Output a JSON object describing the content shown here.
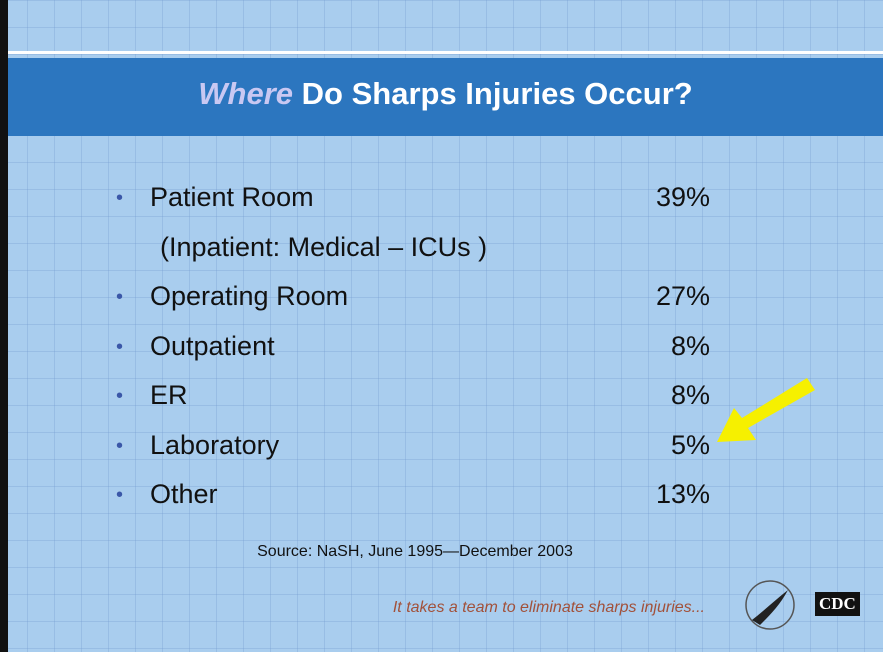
{
  "title": {
    "emphasis": "Where",
    "rest": "Do Sharps Injuries Occur?"
  },
  "items": [
    {
      "label": "Patient Room",
      "value": "39%",
      "note": "(Inpatient: Medical – ICUs )"
    },
    {
      "label": "Operating Room",
      "value": "27%"
    },
    {
      "label": "Outpatient",
      "value": "8%"
    },
    {
      "label": "ER",
      "value": "8%"
    },
    {
      "label": "Laboratory",
      "value": "5%"
    },
    {
      "label": "Other",
      "value": "13%"
    }
  ],
  "source": "Source:  NaSH, June 1995—December 2003",
  "tagline": "It takes a team to eliminate sharps injuries...",
  "logo": "CDC"
}
